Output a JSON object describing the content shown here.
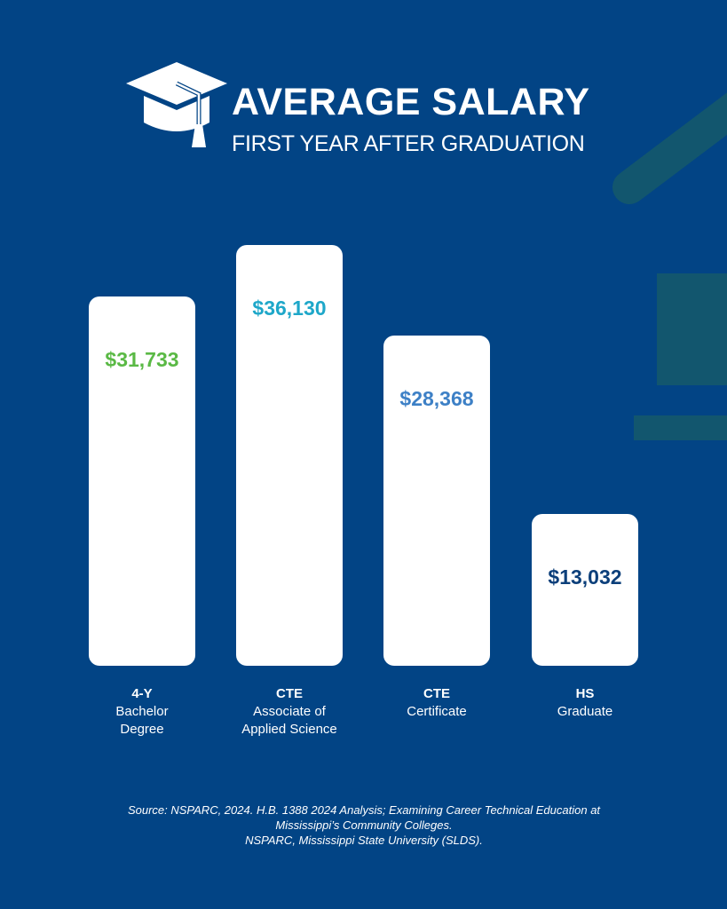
{
  "header": {
    "title": "AVERAGE SALARY",
    "subtitle": "FIRST YEAR AFTER GRADUATION",
    "icon": "graduation-cap-icon"
  },
  "colors": {
    "background": "#024485",
    "decoration": "#12566e",
    "bar": "#ffffff"
  },
  "chart_data": {
    "type": "bar",
    "title": "",
    "xlabel": "",
    "ylabel": "",
    "ylim": [
      0,
      36130
    ],
    "grid": false,
    "categories": [
      {
        "line1": "4-Y",
        "line2": "Bachelor",
        "line3": "Degree"
      },
      {
        "line1": "CTE",
        "line2": "Associate of",
        "line3": "Applied Science"
      },
      {
        "line1": "CTE",
        "line2": "Certificate",
        "line3": ""
      },
      {
        "line1": "HS",
        "line2": "Graduate",
        "line3": ""
      }
    ],
    "values": [
      31733,
      36130,
      28368,
      13032
    ],
    "value_labels": [
      "$31,733",
      "$36,130",
      "$28,368",
      "$13,032"
    ],
    "label_colors": [
      "#5ab945",
      "#1ea7c9",
      "#3d80c6",
      "#0c3f7a"
    ]
  },
  "source": {
    "line1": "Source: NSPARC, 2024. H.B. 1388 2024 Analysis; Examining Career Technical Education at",
    "line2": "Mississippi’s Community Colleges.",
    "line3": "NSPARC, Mississippi State University (SLDS)."
  }
}
